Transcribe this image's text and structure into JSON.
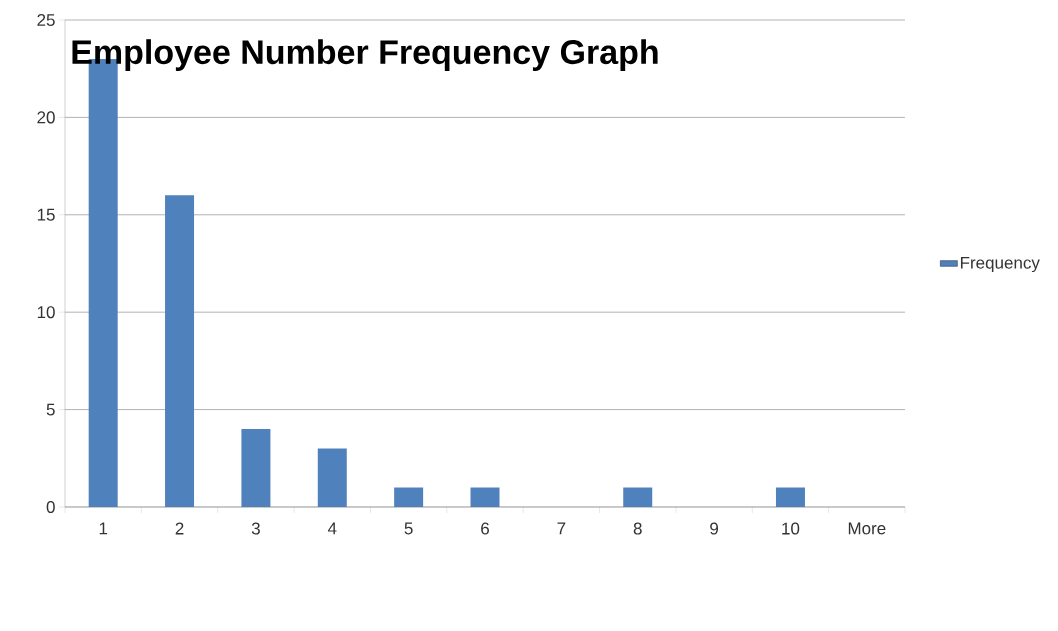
{
  "chart_data": {
    "type": "bar",
    "title": "Employee Number Frequency Graph",
    "categories": [
      "1",
      "2",
      "3",
      "4",
      "5",
      "6",
      "7",
      "8",
      "9",
      "10",
      "More"
    ],
    "series": [
      {
        "name": "Frequency",
        "color": "#4f81bd",
        "values": [
          23,
          16,
          4,
          3,
          1,
          1,
          0,
          1,
          0,
          1,
          0
        ]
      }
    ],
    "ylim": [
      0,
      25
    ],
    "yticks": [
      0,
      5,
      10,
      15,
      20,
      25
    ],
    "grid": "y",
    "legend": "right"
  }
}
